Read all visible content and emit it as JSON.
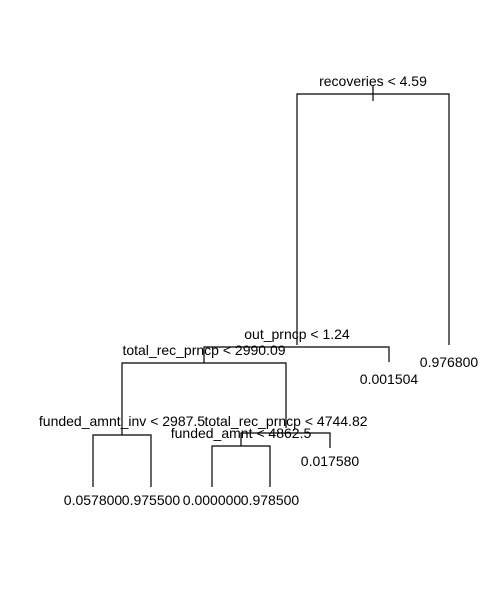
{
  "tree": {
    "split_labels": {
      "root": "recoveries < 4.59",
      "n_out": "out_prncp < 1.24",
      "n_trp1": "total_rec_prncp < 2990.09",
      "n_fai": "funded_amnt_inv < 2987.5",
      "n_trp2": "total_rec_prncp < 4744.82",
      "n_fa": "funded_amnt < 4862.5"
    },
    "leaf_labels": {
      "leaf_root_right": "0.976800",
      "leaf_out_right": "0.001504",
      "leaf_trp2_right": "0.017580",
      "leaf_fai_left": "0.057800",
      "leaf_fai_right": "0.975500",
      "leaf_fa_left": "0.000000",
      "leaf_fa_right": "0.978500"
    }
  }
}
